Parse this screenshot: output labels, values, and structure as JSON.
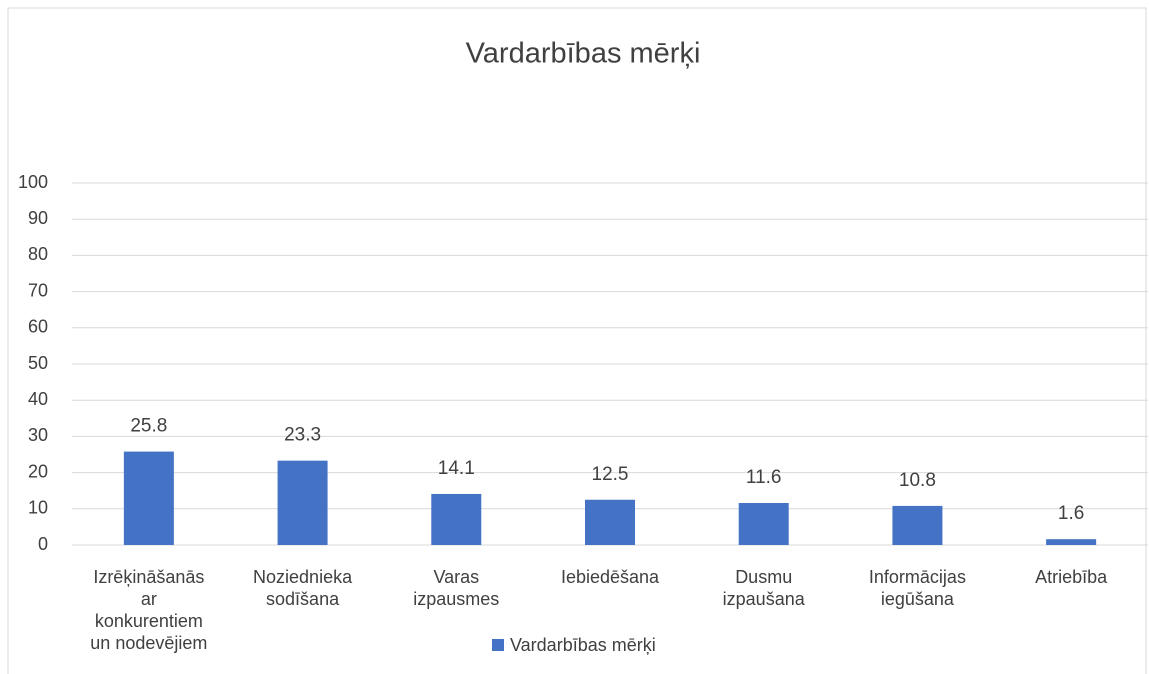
{
  "chart_data": {
    "type": "bar",
    "title": "Vardarbības mērķi",
    "categories": [
      "Izrēķināšanās\nar\nkonkurentiem\nun nodevējiem",
      "Noziednieka\nsodīšana",
      "Varas\nizpausmes",
      "Iebiedēšana",
      "Dusmu\nizpaušana",
      "Informācijas\niegūšana",
      "Atriebība"
    ],
    "series": [
      {
        "name": "Vardarbības mērķi",
        "color": "#4472c4",
        "values": [
          25.8,
          23.3,
          14.1,
          12.5,
          11.6,
          10.8,
          1.6
        ]
      }
    ],
    "ylim": [
      0,
      100
    ],
    "yticks": [
      0,
      10,
      20,
      30,
      40,
      50,
      60,
      70,
      80,
      90,
      100
    ],
    "grid": true,
    "legend": "bottom"
  }
}
